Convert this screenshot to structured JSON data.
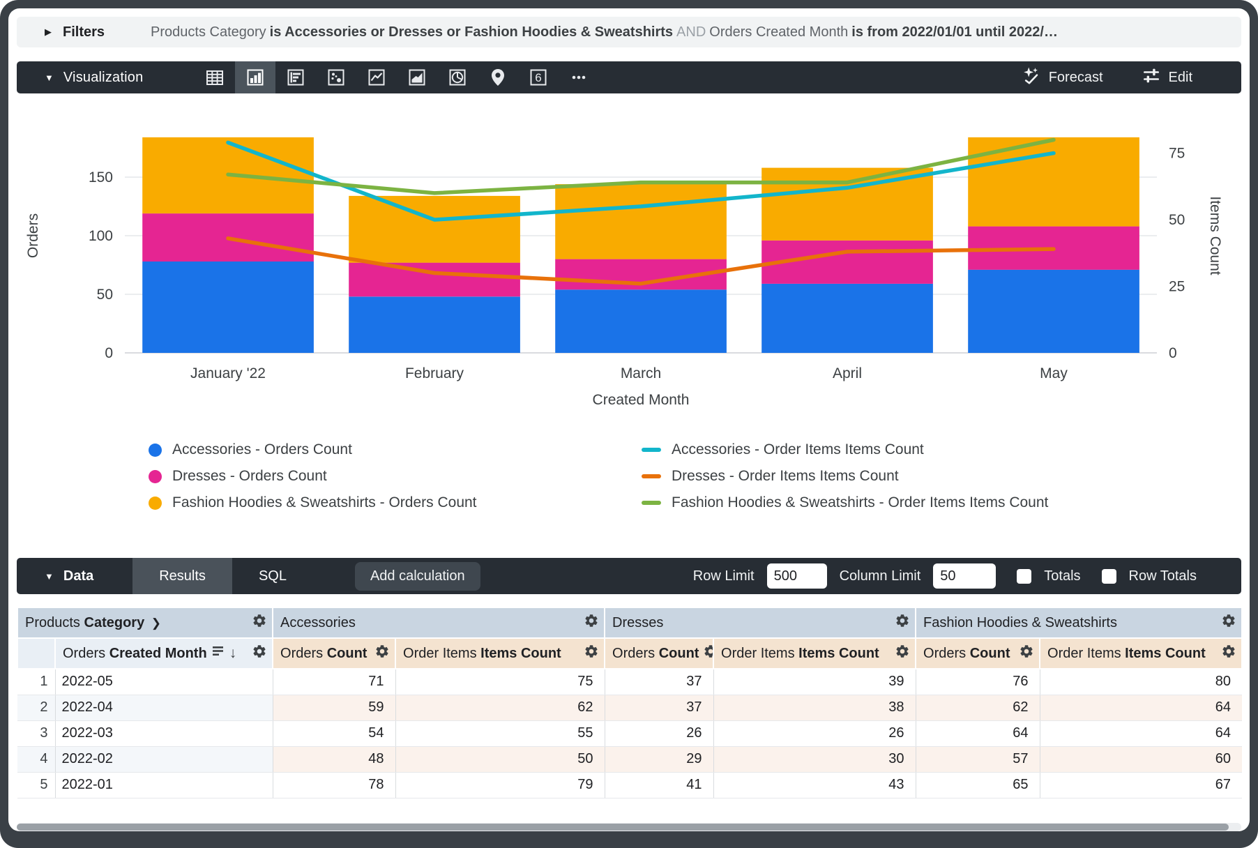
{
  "icons": {
    "caret-right": "▶",
    "caret-down": "▼",
    "chevron-right": "❯",
    "arrow-down": "↓"
  },
  "filters": {
    "label": "Filters",
    "segments": [
      {
        "text": "Products Category",
        "style": "field"
      },
      {
        "text": "is Accessories or Dresses or Fashion Hoodies & Sweatshirts",
        "style": "value"
      },
      {
        "text": "AND",
        "style": "and"
      },
      {
        "text": "Orders Created Month",
        "style": "field"
      },
      {
        "text": "is from 2022/01/01 until 2022/…",
        "style": "value"
      }
    ]
  },
  "viz": {
    "label": "Visualization",
    "icons": [
      {
        "name": "table-chart",
        "active": false
      },
      {
        "name": "column-chart",
        "active": true
      },
      {
        "name": "bar-chart",
        "active": false
      },
      {
        "name": "scatter-plot",
        "active": false
      },
      {
        "name": "line-chart",
        "active": false
      },
      {
        "name": "area-chart",
        "active": false
      },
      {
        "name": "pie-chart",
        "active": false
      },
      {
        "name": "map",
        "active": false
      },
      {
        "name": "single-value",
        "active": false
      },
      {
        "name": "more-options",
        "active": false
      }
    ],
    "single_value_glyph": "6",
    "forecast_label": "Forecast",
    "edit_label": "Edit"
  },
  "chart_data": {
    "type": "combo: stacked bar + line",
    "categories": [
      "January '22",
      "February",
      "March",
      "April",
      "May"
    ],
    "bar_series": [
      {
        "name": "Accessories - Orders Count",
        "color": "#1A73E8",
        "values": [
          78,
          48,
          54,
          59,
          71
        ]
      },
      {
        "name": "Dresses - Orders Count",
        "color": "#E52592",
        "values": [
          41,
          29,
          26,
          37,
          37
        ]
      },
      {
        "name": "Fashion Hoodies & Sweatshirts - Orders Count",
        "color": "#F9AB00",
        "values": [
          65,
          57,
          64,
          62,
          76
        ]
      }
    ],
    "line_series": [
      {
        "name": "Accessories - Order Items Items Count",
        "color": "#12B5CB",
        "values": [
          79,
          50,
          55,
          62,
          75
        ]
      },
      {
        "name": "Dresses - Order Items Items Count",
        "color": "#E8710A",
        "values": [
          43,
          30,
          26,
          38,
          39
        ]
      },
      {
        "name": "Fashion Hoodies & Sweatshirts - Order Items Items Count",
        "color": "#7CB342",
        "values": [
          67,
          60,
          64,
          64,
          80
        ]
      }
    ],
    "left_axis": {
      "label": "Orders",
      "ticks": [
        0,
        50,
        100,
        150
      ],
      "max": 200
    },
    "right_axis": {
      "label": "Items Count",
      "ticks": [
        0,
        25,
        50,
        75
      ],
      "max": 88
    },
    "xlabel": "Created Month",
    "grid": true,
    "legend_position": "bottom"
  },
  "data_bar": {
    "label": "Data",
    "tabs": [
      {
        "label": "Results",
        "active": true
      },
      {
        "label": "SQL",
        "active": false
      }
    ],
    "add_calculation_label": "Add calculation",
    "row_limit_label": "Row Limit",
    "row_limit_value": "500",
    "column_limit_label": "Column Limit",
    "column_limit_value": "50",
    "totals_label": "Totals",
    "totals_checked": false,
    "row_totals_label": "Row Totals",
    "row_totals_checked": false
  },
  "table": {
    "dimension_group": {
      "plain": "Products",
      "bold": "Category"
    },
    "dimension_column": {
      "plain": "Orders",
      "bold": "Created Month"
    },
    "groups": [
      "Accessories",
      "Dresses",
      "Fashion Hoodies & Sweatshirts"
    ],
    "measure_columns": [
      {
        "plain": "Orders",
        "bold": "Count"
      },
      {
        "plain": "Order Items",
        "bold": "Items Count"
      }
    ],
    "rows": [
      {
        "num": "1",
        "dim": "2022-05",
        "values": [
          71,
          75,
          37,
          39,
          76,
          80
        ]
      },
      {
        "num": "2",
        "dim": "2022-04",
        "values": [
          59,
          62,
          37,
          38,
          62,
          64
        ]
      },
      {
        "num": "3",
        "dim": "2022-03",
        "values": [
          54,
          55,
          26,
          26,
          64,
          64
        ]
      },
      {
        "num": "4",
        "dim": "2022-02",
        "values": [
          48,
          50,
          29,
          30,
          57,
          60
        ]
      },
      {
        "num": "5",
        "dim": "2022-01",
        "values": [
          78,
          79,
          41,
          43,
          65,
          67
        ]
      }
    ]
  }
}
